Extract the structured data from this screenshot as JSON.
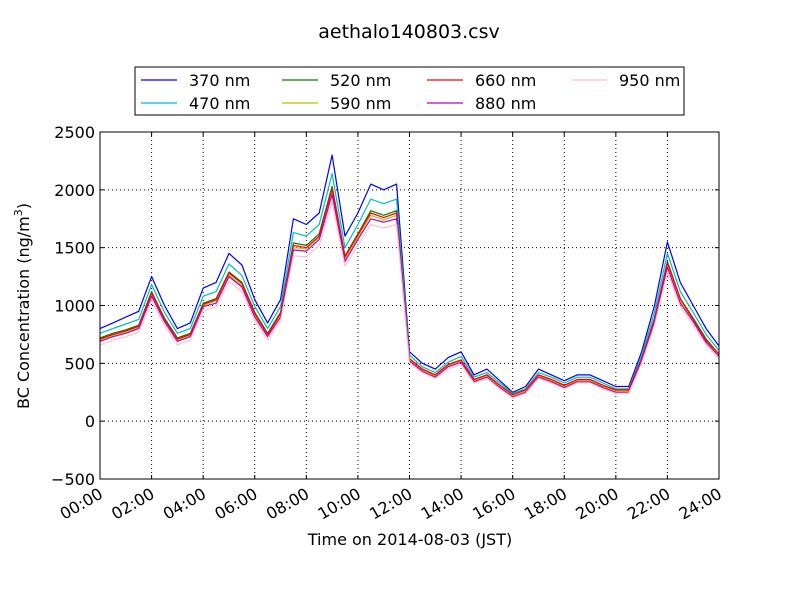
{
  "chart_data": {
    "type": "line",
    "title": "aethalo140803.csv",
    "xlabel": "Time on 2014-08-03 (JST)",
    "ylabel": "BC Concentration (ng/m",
    "ylabel_sup": "3",
    "ylabel_close": ")",
    "xlim": [
      0,
      24
    ],
    "ylim": [
      -500,
      2500
    ],
    "x_ticks": [
      0,
      2,
      4,
      6,
      8,
      10,
      12,
      14,
      16,
      18,
      20,
      22,
      24
    ],
    "x_tick_labels": [
      "00:00",
      "02:00",
      "04:00",
      "06:00",
      "08:00",
      "10:00",
      "12:00",
      "14:00",
      "16:00",
      "18:00",
      "20:00",
      "22:00",
      "24:00"
    ],
    "y_ticks": [
      -500,
      0,
      500,
      1000,
      1500,
      2000,
      2500
    ],
    "y_tick_labels": [
      "−500",
      "0",
      "500",
      "1000",
      "1500",
      "2000",
      "2500"
    ],
    "grid": true,
    "legend_position": "top",
    "x": [
      0.0,
      0.5,
      1.0,
      1.5,
      2.0,
      2.5,
      3.0,
      3.5,
      4.0,
      4.5,
      5.0,
      5.5,
      6.0,
      6.5,
      7.0,
      7.5,
      8.0,
      8.5,
      9.0,
      9.5,
      10.0,
      10.5,
      11.0,
      11.5,
      12.0,
      12.5,
      13.0,
      13.5,
      14.0,
      14.5,
      15.0,
      15.5,
      16.0,
      16.5,
      17.0,
      17.5,
      18.0,
      18.5,
      19.0,
      19.5,
      20.0,
      20.5,
      21.0,
      21.5,
      22.0,
      22.5,
      23.0,
      23.5,
      24.0
    ],
    "series": [
      {
        "name": "370 nm",
        "color": "#0000ff",
        "values": [
          800,
          850,
          900,
          950,
          1250,
          1000,
          800,
          850,
          1150,
          1200,
          1450,
          1350,
          1050,
          850,
          1050,
          1750,
          1700,
          1800,
          2300,
          1600,
          1800,
          2050,
          2000,
          2050,
          600,
          500,
          450,
          550,
          600,
          400,
          450,
          350,
          250,
          300,
          450,
          400,
          350,
          400,
          400,
          350,
          300,
          300,
          600,
          1000,
          1550,
          1200,
          1000,
          800,
          650
        ]
      },
      {
        "name": "470 nm",
        "color": "#00bfbf",
        "values": [
          760,
          800,
          840,
          880,
          1180,
          940,
          760,
          800,
          1080,
          1120,
          1360,
          1260,
          990,
          800,
          990,
          1630,
          1600,
          1700,
          2140,
          1500,
          1700,
          1920,
          1880,
          1920,
          570,
          470,
          420,
          510,
          560,
          380,
          420,
          330,
          240,
          280,
          420,
          380,
          330,
          380,
          380,
          330,
          280,
          280,
          570,
          940,
          1450,
          1120,
          940,
          750,
          610
        ]
      },
      {
        "name": "520 nm",
        "color": "#008000",
        "values": [
          720,
          760,
          790,
          830,
          1120,
          890,
          720,
          760,
          1020,
          1060,
          1290,
          1200,
          940,
          760,
          940,
          1540,
          1520,
          1620,
          2030,
          1430,
          1620,
          1820,
          1780,
          1820,
          540,
          450,
          400,
          490,
          530,
          360,
          400,
          310,
          230,
          270,
          400,
          360,
          310,
          360,
          360,
          310,
          270,
          270,
          540,
          890,
          1380,
          1060,
          890,
          710,
          580
        ]
      },
      {
        "name": "590 nm",
        "color": "#bfbf00",
        "values": [
          700,
          740,
          770,
          810,
          1100,
          870,
          700,
          740,
          1000,
          1040,
          1260,
          1170,
          920,
          740,
          920,
          1500,
          1490,
          1590,
          1990,
          1400,
          1590,
          1780,
          1740,
          1780,
          530,
          440,
          390,
          480,
          520,
          350,
          390,
          300,
          220,
          260,
          390,
          350,
          300,
          350,
          350,
          300,
          260,
          260,
          530,
          870,
          1350,
          1040,
          870,
          690,
          570
        ]
      },
      {
        "name": "660 nm",
        "color": "#ff0000",
        "values": [
          710,
          750,
          780,
          820,
          1110,
          880,
          710,
          750,
          1010,
          1050,
          1280,
          1190,
          930,
          750,
          930,
          1520,
          1500,
          1600,
          2010,
          1420,
          1610,
          1800,
          1760,
          1800,
          540,
          450,
          400,
          490,
          530,
          360,
          400,
          310,
          230,
          270,
          400,
          360,
          310,
          360,
          360,
          310,
          270,
          270,
          540,
          880,
          1370,
          1060,
          880,
          700,
          580
        ]
      },
      {
        "name": "880 nm",
        "color": "#bf00bf",
        "values": [
          690,
          730,
          760,
          800,
          1080,
          860,
          690,
          730,
          990,
          1020,
          1250,
          1160,
          900,
          730,
          900,
          1480,
          1470,
          1570,
          1960,
          1380,
          1570,
          1750,
          1720,
          1750,
          520,
          430,
          380,
          470,
          510,
          340,
          380,
          290,
          210,
          250,
          380,
          340,
          290,
          340,
          340,
          290,
          250,
          250,
          520,
          860,
          1330,
          1020,
          860,
          680,
          560
        ]
      },
      {
        "name": "950 nm",
        "color": "#ffc0cb",
        "values": [
          660,
          700,
          730,
          770,
          1040,
          830,
          660,
          700,
          950,
          990,
          1210,
          1120,
          870,
          700,
          870,
          1430,
          1420,
          1520,
          1900,
          1340,
          1520,
          1700,
          1670,
          1700,
          500,
          420,
          370,
          450,
          490,
          330,
          370,
          280,
          200,
          240,
          370,
          330,
          280,
          330,
          330,
          280,
          240,
          240,
          500,
          830,
          1290,
          990,
          830,
          660,
          540
        ]
      }
    ]
  }
}
